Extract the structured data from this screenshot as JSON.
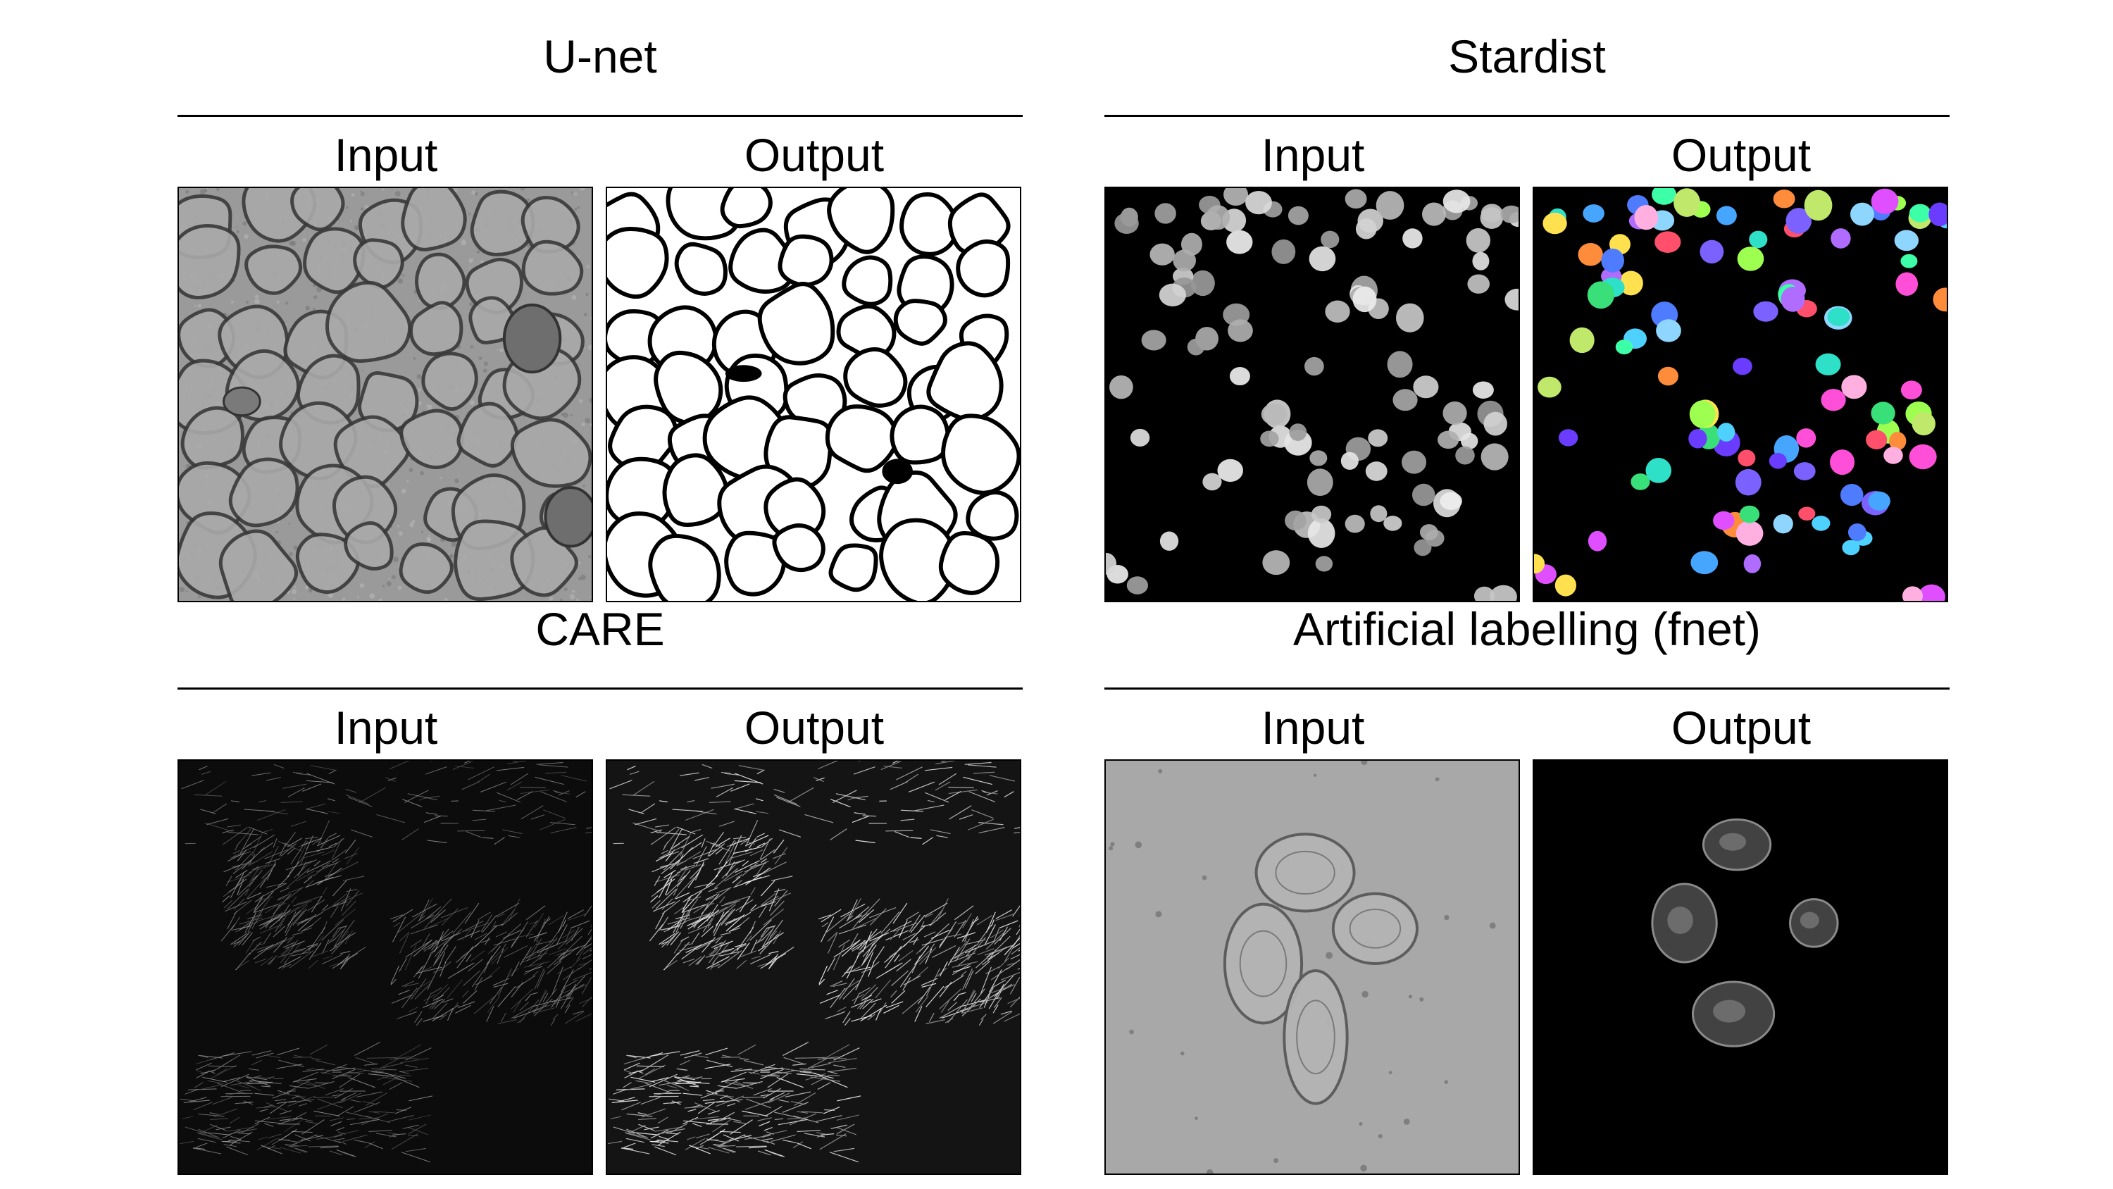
{
  "panels": {
    "unet": {
      "title": "U-net",
      "input_label": "Input",
      "output_label": "Output"
    },
    "stardist": {
      "title": "Stardist",
      "input_label": "Input",
      "output_label": "Output"
    },
    "care": {
      "title": "CARE",
      "input_label": "Input",
      "output_label": "Output"
    },
    "fnet": {
      "title": "Artificial labelling (fnet)",
      "input_label": "Input",
      "output_label": "Output"
    }
  },
  "colors": {
    "nuclei_palette": [
      "#4fd1ff",
      "#7b61ff",
      "#39e07a",
      "#ff4fd8",
      "#ffe14f",
      "#4f7bff",
      "#ff8c3a",
      "#2ee0c8",
      "#b06bff",
      "#9dff4f",
      "#ff4f6b",
      "#8fd6ff",
      "#c0e86a",
      "#6a3cff",
      "#3cffa8",
      "#ffb0e0",
      "#46a6ff",
      "#e04fff"
    ]
  }
}
